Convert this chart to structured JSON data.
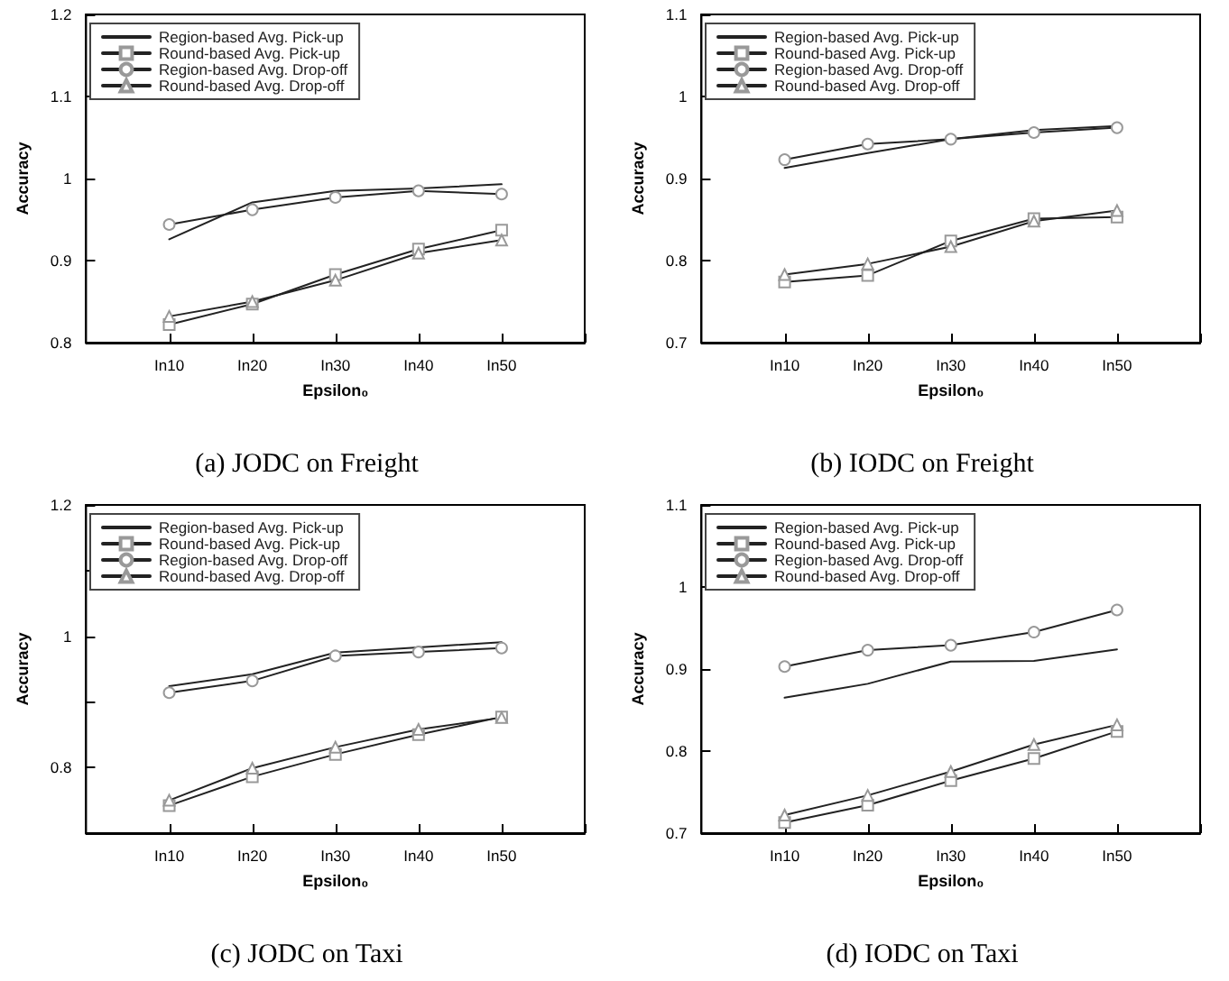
{
  "chart_data": [
    {
      "type": "line",
      "title": "(a) JODC on Freight",
      "xlabel": "Epsilon₀",
      "ylabel": "Accuracy",
      "categories": [
        null,
        "In10",
        "In20",
        "In30",
        "In40",
        "In50",
        null
      ],
      "ylim": [
        0.8,
        1.2
      ],
      "yticks": [
        0.8,
        0.9,
        1,
        1.1,
        1.2
      ],
      "grid": false,
      "legend": "top left",
      "series": [
        {
          "name": "Region-based Avg. Pick-up",
          "color": "#222222",
          "marker": "none",
          "values": [
            null,
            0.926,
            0.971,
            0.985,
            0.988,
            0.993,
            null
          ]
        },
        {
          "name": "Round-based Avg. Pick-up",
          "color": "#222222",
          "marker": "square",
          "values": [
            null,
            0.822,
            0.847,
            0.883,
            0.914,
            0.937,
            null
          ]
        },
        {
          "name": "Region-based Avg. Drop-off",
          "color": "#222222",
          "marker": "circle",
          "values": [
            null,
            0.944,
            0.962,
            0.977,
            0.985,
            0.981,
            null
          ]
        },
        {
          "name": "Round-based Avg. Drop-off",
          "color": "#222222",
          "marker": "triangle",
          "values": [
            null,
            0.832,
            0.85,
            0.876,
            0.909,
            0.925,
            null
          ]
        }
      ]
    },
    {
      "type": "line",
      "title": "(b) IODC on Freight",
      "xlabel": "Epsilon₀",
      "ylabel": "Accuracy",
      "categories": [
        null,
        "In10",
        "In20",
        "In30",
        "In40",
        "In50",
        null
      ],
      "ylim": [
        0.7,
        1.1
      ],
      "yticks": [
        0.7,
        0.8,
        0.9,
        1,
        1.1
      ],
      "grid": false,
      "legend": "top left",
      "series": [
        {
          "name": "Region-based Avg. Pick-up",
          "color": "#222222",
          "marker": "none",
          "values": [
            null,
            0.913,
            0.931,
            0.948,
            0.959,
            0.964,
            null
          ]
        },
        {
          "name": "Round-based Avg. Pick-up",
          "color": "#222222",
          "marker": "square",
          "values": [
            null,
            0.774,
            0.782,
            0.824,
            0.851,
            0.853,
            null
          ]
        },
        {
          "name": "Region-based Avg. Drop-off",
          "color": "#222222",
          "marker": "circle",
          "values": [
            null,
            0.923,
            0.942,
            0.948,
            0.956,
            0.962,
            null
          ]
        },
        {
          "name": "Round-based Avg. Drop-off",
          "color": "#222222",
          "marker": "triangle",
          "values": [
            null,
            0.783,
            0.796,
            0.817,
            0.848,
            0.861,
            null
          ]
        }
      ]
    },
    {
      "type": "line",
      "title": "(c) JODC on Taxi",
      "xlabel": "Epsilon₀",
      "ylabel": "Accuracy",
      "categories": [
        null,
        "In10",
        "In20",
        "In30",
        "In40",
        "In50",
        null
      ],
      "ylim": [
        0.7,
        1.2
      ],
      "yticks": [
        {
          "value": 0.7,
          "label": null
        },
        0.8,
        {
          "value": 0.9,
          "label": null
        },
        1,
        {
          "value": 1.1,
          "label": null
        },
        1.2
      ],
      "grid": false,
      "legend": "top left",
      "series": [
        {
          "name": "Region-based Avg. Pick-up",
          "color": "#222222",
          "marker": "none",
          "values": [
            null,
            0.924,
            0.942,
            0.975,
            0.983,
            0.991,
            null
          ]
        },
        {
          "name": "Round-based Avg. Pick-up",
          "color": "#222222",
          "marker": "square",
          "values": [
            null,
            0.742,
            0.786,
            0.82,
            0.85,
            0.877,
            null
          ]
        },
        {
          "name": "Region-based Avg. Drop-off",
          "color": "#222222",
          "marker": "circle",
          "values": [
            null,
            0.914,
            0.932,
            0.97,
            0.976,
            0.982,
            null
          ]
        },
        {
          "name": "Round-based Avg. Drop-off",
          "color": "#222222",
          "marker": "triangle",
          "values": [
            null,
            0.75,
            0.799,
            0.831,
            0.858,
            0.876,
            null
          ]
        }
      ]
    },
    {
      "type": "line",
      "title": "(d) IODC on Taxi",
      "xlabel": "Epsilon₀",
      "ylabel": "Accuracy",
      "categories": [
        null,
        "In10",
        "In20",
        "In30",
        "In40",
        "In50",
        null
      ],
      "ylim": [
        0.7,
        1.1
      ],
      "yticks": [
        0.7,
        0.8,
        0.9,
        1,
        1.1
      ],
      "grid": false,
      "legend": "top left",
      "series": [
        {
          "name": "Region-based Avg. Pick-up",
          "color": "#222222",
          "marker": "none",
          "values": [
            null,
            0.865,
            0.882,
            0.909,
            0.91,
            0.924,
            null
          ]
        },
        {
          "name": "Round-based Avg. Pick-up",
          "color": "#222222",
          "marker": "square",
          "values": [
            null,
            0.713,
            0.734,
            0.764,
            0.791,
            0.824,
            null
          ]
        },
        {
          "name": "Region-based Avg. Drop-off",
          "color": "#222222",
          "marker": "circle",
          "values": [
            null,
            0.903,
            0.923,
            0.929,
            0.945,
            0.972,
            null
          ]
        },
        {
          "name": "Round-based Avg. Drop-off",
          "color": "#222222",
          "marker": "triangle",
          "values": [
            null,
            0.722,
            0.746,
            0.775,
            0.808,
            0.832,
            null
          ]
        }
      ]
    }
  ]
}
